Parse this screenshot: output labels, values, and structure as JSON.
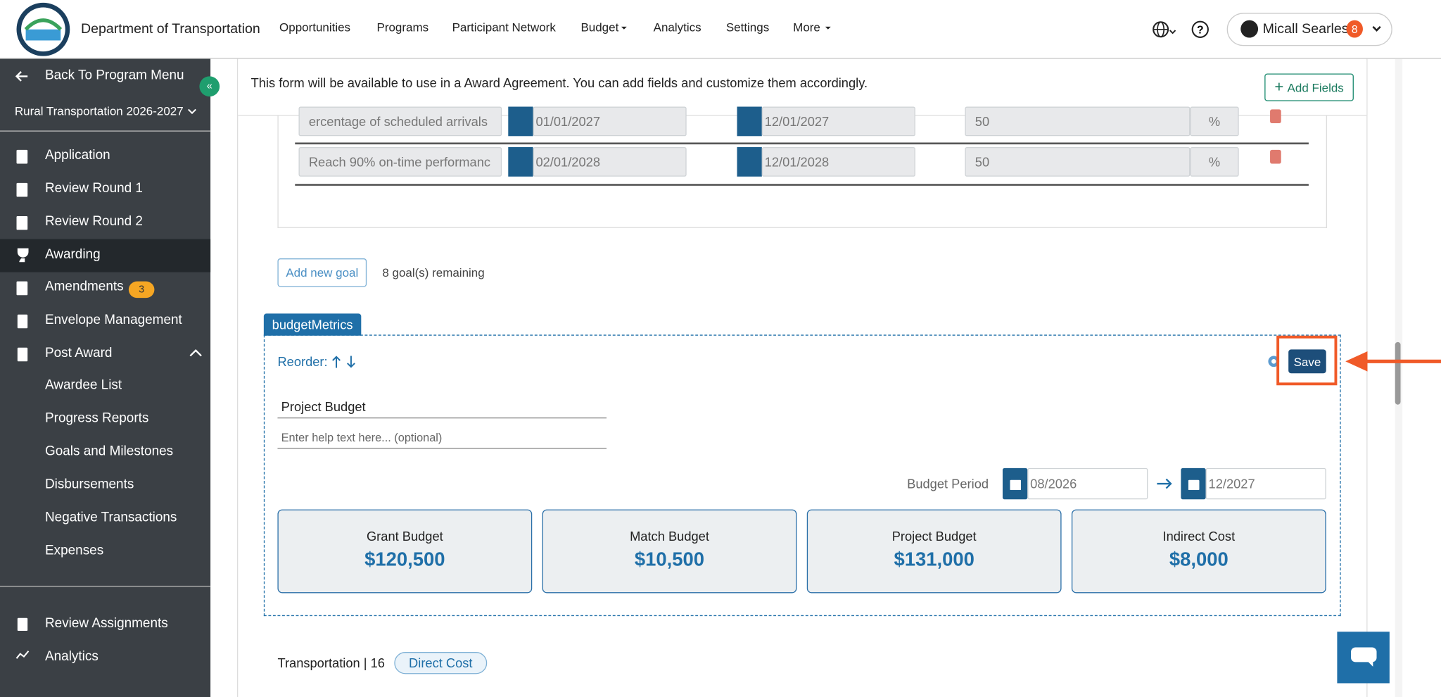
{
  "header": {
    "org_name": "Department of Transportation",
    "nav": [
      "Opportunities",
      "Programs",
      "Participant Network",
      "Budget",
      "Analytics",
      "Settings",
      "More"
    ],
    "user_name": "Micall Searles",
    "user_badge": "8"
  },
  "sidebar": {
    "back": "Back To Program Menu",
    "program": "Rural Transportation 2026-2027",
    "menu": [
      "Application",
      "Review Round 1",
      "Review Round 2",
      "Awarding",
      "Amendments",
      "Envelope Management",
      "Post Award"
    ],
    "amendments_badge": "3",
    "post_award_items": [
      "Awardee List",
      "Progress Reports",
      "Goals and Milestones",
      "Disbursements",
      "Negative Transactions",
      "Expenses"
    ],
    "bottom": [
      "Review Assignments",
      "Analytics"
    ]
  },
  "main": {
    "notice": "This form will be available to use in a Award Agreement. You can add fields and customize them accordingly.",
    "add_fields": "Add Fields",
    "goals": {
      "rows": [
        [
          "ercentage of scheduled arrivals",
          "01/01/2027",
          "12/01/2027",
          "50",
          "%"
        ],
        [
          "Reach 90% on-time performanc",
          "02/01/2028",
          "12/01/2028",
          "50",
          "%"
        ]
      ]
    },
    "add_goal": "Add new goal",
    "remaining": "8 goal(s) remaining",
    "section_tag": "budgetMetrics",
    "reorder": "Reorder:",
    "save": "Save",
    "field_label": "Project Budget",
    "help_placeholder": "Enter help text here... (optional)",
    "budget_period_label": "Budget Period",
    "period_start": "08/2026",
    "period_end": "12/2027",
    "cards": [
      {
        "title": "Grant Budget",
        "value": "$120,500"
      },
      {
        "title": "Match Budget",
        "value": "$10,500"
      },
      {
        "title": "Project Budget",
        "value": "$131,000"
      },
      {
        "title": "Indirect Cost",
        "value": "$8,000"
      }
    ],
    "next_field": "Transportation | 16",
    "next_tag": "Direct Cost"
  }
}
